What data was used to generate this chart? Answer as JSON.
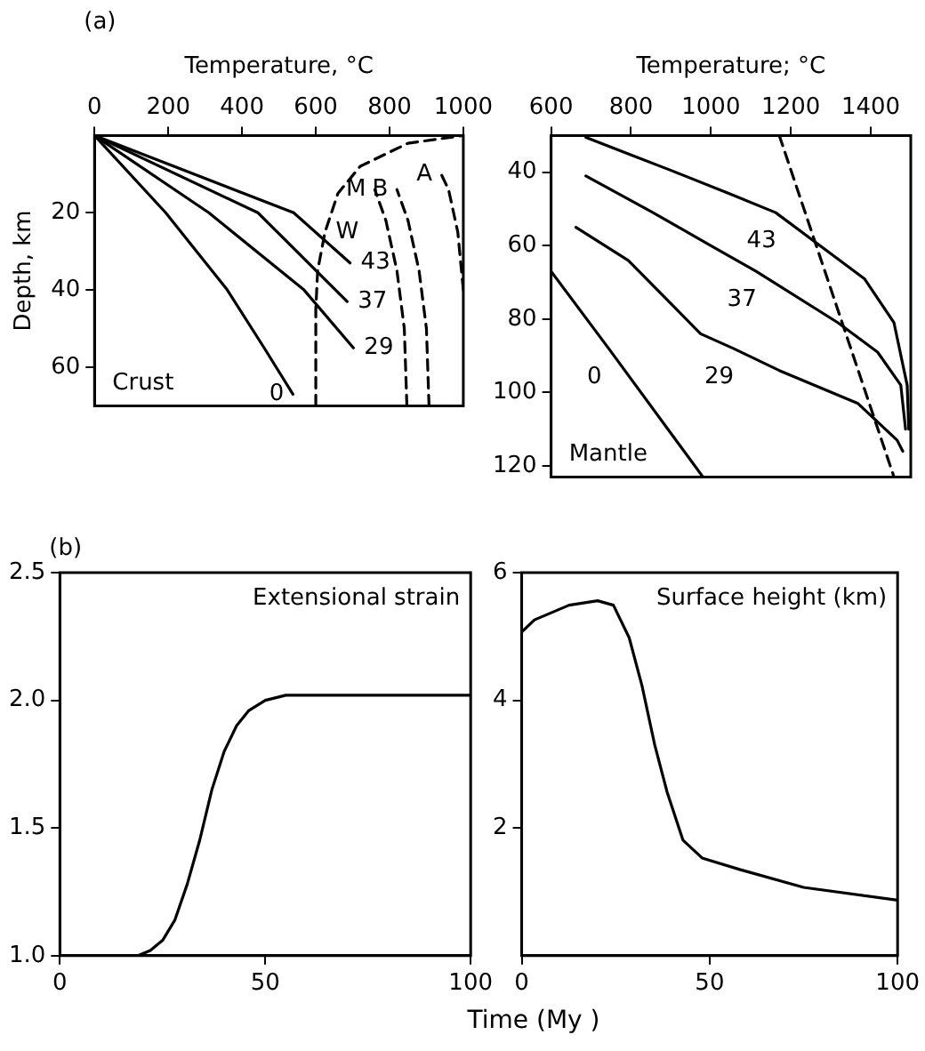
{
  "chart_data": [
    {
      "type": "line",
      "title": "(a)",
      "xlabel": "Temperature, °C",
      "ylabel": "Depth, km",
      "xlim": [
        0,
        1000
      ],
      "xticks": [
        0,
        200,
        400,
        600,
        800,
        1000
      ],
      "ylim": [
        70,
        0
      ],
      "yticks": [
        20,
        40,
        60
      ],
      "grid": false,
      "legend": false,
      "marker": "none",
      "annotations": [
        "Crust"
      ],
      "series": [
        {
          "name": "0",
          "color": "#000000",
          "line_style": "solid",
          "x": [
            0,
            193,
            360,
            460,
            538
          ],
          "values": [
            0,
            20,
            40,
            55,
            67
          ]
        },
        {
          "name": "29",
          "color": "#000000",
          "line_style": "solid",
          "x": [
            0,
            310,
            568,
            702
          ],
          "values": [
            0,
            20,
            40,
            55
          ]
        },
        {
          "name": "37",
          "color": "#000000",
          "line_style": "solid",
          "x": [
            0,
            443,
            685
          ],
          "values": [
            0,
            20,
            43
          ]
        },
        {
          "name": "43",
          "color": "#000000",
          "line_style": "solid",
          "x": [
            0,
            540,
            693
          ],
          "values": [
            0,
            20,
            33
          ]
        },
        {
          "name": "W",
          "color": "#000000",
          "line_style": "dashed",
          "x": [
            600,
            600,
            605,
            625,
            660,
            720,
            850,
            1000
          ],
          "values": [
            70,
            45,
            35,
            25,
            15,
            8,
            2,
            0
          ]
        },
        {
          "name": "M",
          "color": "#000000",
          "line_style": "dashed",
          "x": [
            847,
            840,
            820,
            790,
            760
          ],
          "values": [
            70,
            50,
            35,
            22,
            14
          ]
        },
        {
          "name": "B",
          "color": "#000000",
          "line_style": "dashed",
          "x": [
            907,
            900,
            880,
            850,
            820
          ],
          "values": [
            70,
            50,
            35,
            22,
            14
          ]
        },
        {
          "name": "A",
          "color": "#000000",
          "line_style": "dashed",
          "x": [
            1000,
            985,
            960,
            940
          ],
          "values": [
            40,
            25,
            14,
            10
          ]
        }
      ]
    },
    {
      "type": "line",
      "xlabel": "Temperature; °C",
      "xlim": [
        600,
        1500
      ],
      "xticks": [
        600,
        800,
        1000,
        1200,
        1400
      ],
      "ylim": [
        123,
        30
      ],
      "yticks": [
        40,
        60,
        80,
        100,
        120
      ],
      "grid": false,
      "legend": false,
      "marker": "none",
      "annotations": [
        "Mantle"
      ],
      "series": [
        {
          "name": "43",
          "color": "#000000",
          "line_style": "solid",
          "x": [
            687,
            800,
            900,
            1050,
            1162,
            1384,
            1458,
            1491,
            1495
          ],
          "values": [
            30.5,
            35.3,
            39.5,
            46,
            51,
            69,
            81,
            98,
            110
          ]
        },
        {
          "name": "37",
          "color": "#000000",
          "line_style": "solid",
          "x": [
            687,
            850,
            1000,
            1113,
            1318,
            1417,
            1475,
            1487
          ],
          "values": [
            41,
            50.7,
            60,
            67,
            81,
            89,
            98,
            110
          ]
        },
        {
          "name": "29",
          "color": "#000000",
          "line_style": "solid",
          "x": [
            662,
            793,
            974,
            1056,
            1171,
            1368,
            1466,
            1480
          ],
          "values": [
            55,
            64,
            84,
            88,
            94,
            103,
            113,
            116
          ]
        },
        {
          "name": "0",
          "color": "#000000",
          "line_style": "solid",
          "x": [
            600,
            744,
            980
          ],
          "values": [
            67,
            88,
            123
          ]
        },
        {
          "color": "#000000",
          "line_style": "dashed",
          "x": [
            1171,
            1458
          ],
          "values": [
            30,
            123
          ]
        }
      ]
    },
    {
      "type": "line",
      "title": "(b)",
      "xlabel": "Time (My )",
      "xlim": [
        0,
        100
      ],
      "xticks": [
        0,
        50,
        100
      ],
      "ylim": [
        1,
        2.5
      ],
      "yticks": [
        {
          "value": 1,
          "label": "1.0"
        },
        1.5,
        {
          "value": 2,
          "label": "2.0"
        },
        2.5
      ],
      "grid": false,
      "legend": false,
      "marker": "none",
      "annotations": [
        "Extensional strain"
      ],
      "series": [
        {
          "color": "#000000",
          "line_style": "solid",
          "x": [
            0,
            10,
            19,
            22,
            25,
            28,
            31,
            34,
            37,
            40,
            43,
            46,
            50,
            55,
            60,
            80,
            100
          ],
          "values": [
            1.0,
            1.0,
            1.0,
            1.02,
            1.06,
            1.14,
            1.28,
            1.45,
            1.65,
            1.8,
            1.9,
            1.96,
            2.0,
            2.02,
            2.02,
            2.02,
            2.02
          ]
        }
      ]
    },
    {
      "type": "line",
      "xlim": [
        0,
        100
      ],
      "xticks": [
        0,
        50,
        100
      ],
      "ylim": [
        0,
        6
      ],
      "yticks": [
        2,
        4,
        6
      ],
      "grid": false,
      "legend": false,
      "marker": "none",
      "annotations": [
        "Surface height (km)"
      ],
      "series": [
        {
          "color": "#000000",
          "line_style": "solid",
          "x": [
            0,
            3.4,
            12.6,
            20.2,
            24.4,
            28.6,
            32,
            35.4,
            38.7,
            42.9,
            48,
            58,
            75,
            100
          ],
          "values": [
            5.07,
            5.26,
            5.49,
            5.56,
            5.49,
            4.98,
            4.23,
            3.3,
            2.56,
            1.81,
            1.53,
            1.35,
            1.07,
            0.87
          ]
        }
      ]
    }
  ]
}
